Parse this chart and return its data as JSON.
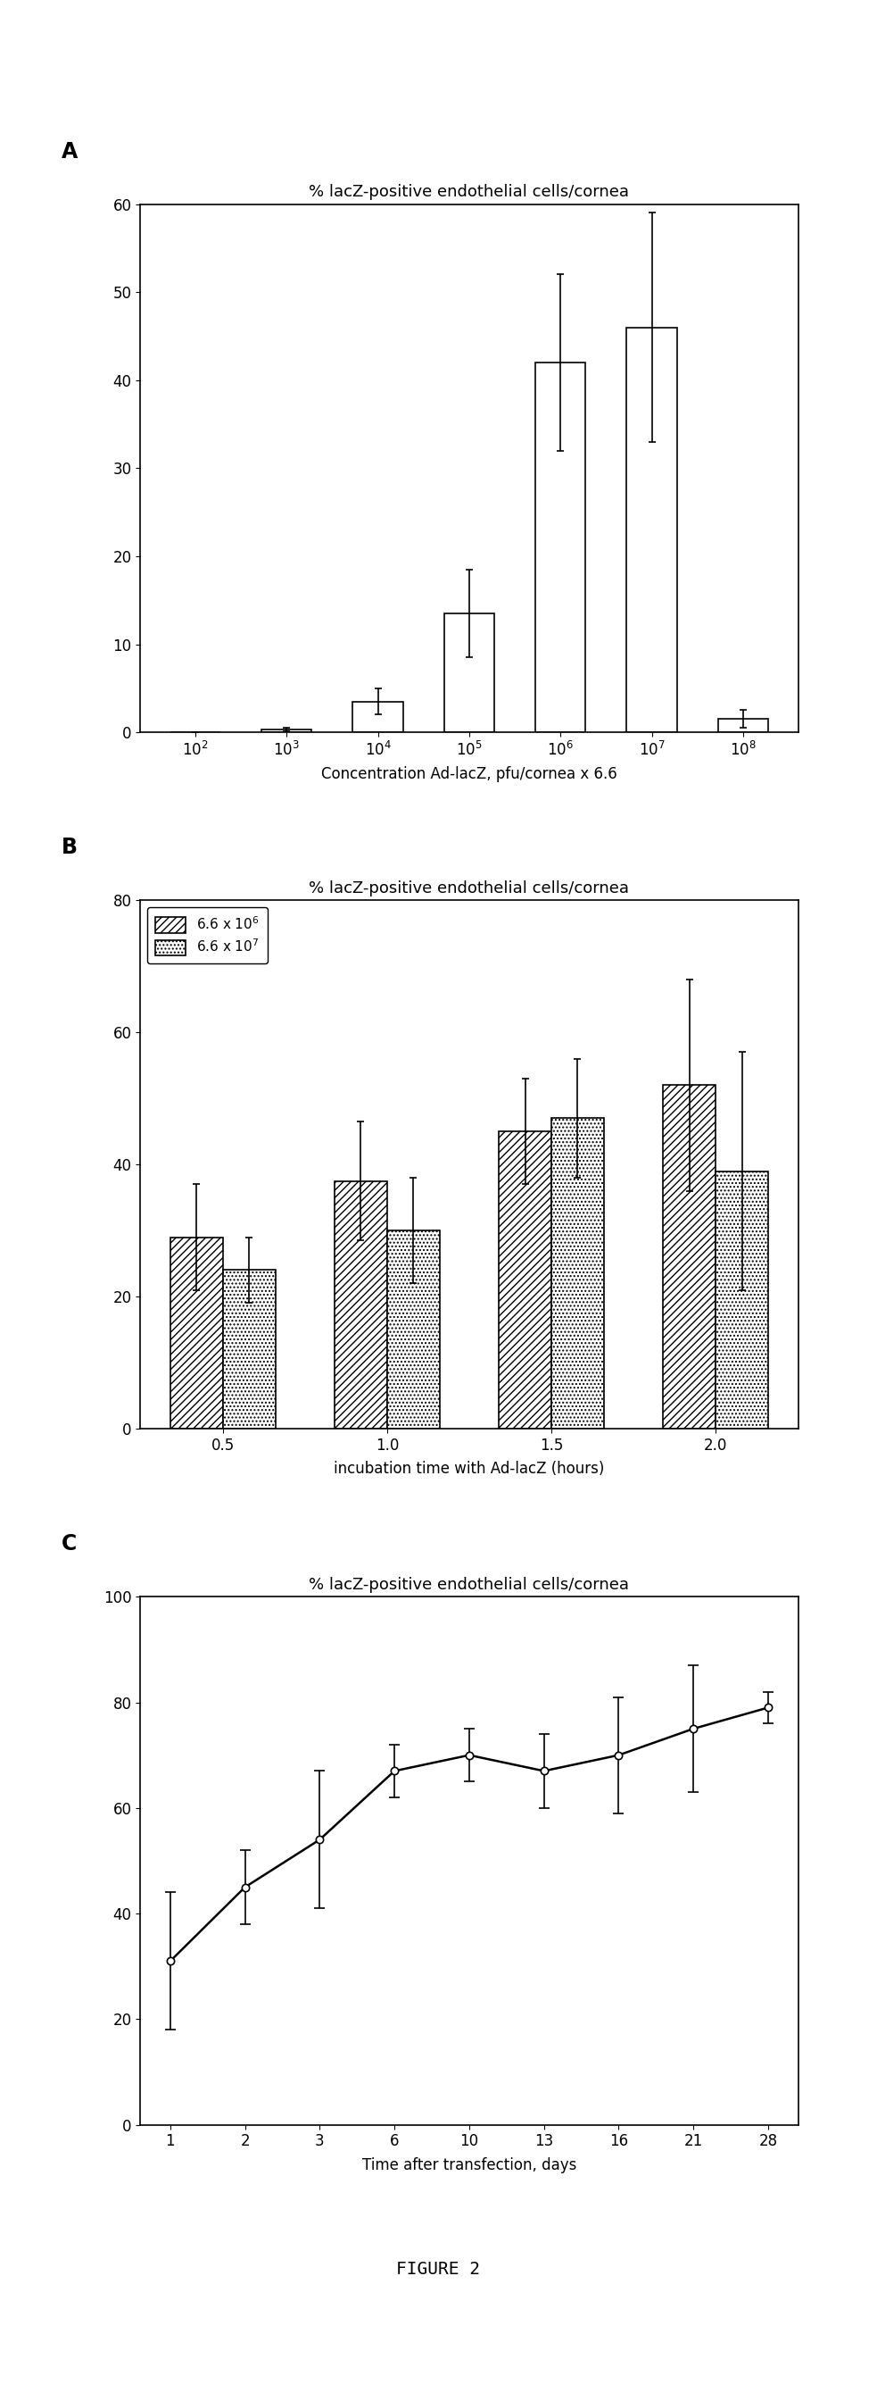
{
  "panel_A": {
    "title": "% lacZ-positive endothelial cells/cornea",
    "xlabel": "Concentration Ad-lacZ, pfu/cornea x 6.6",
    "xlabels": [
      "10$^2$",
      "10$^3$",
      "10$^4$",
      "10$^5$",
      "10$^6$",
      "10$^7$",
      "10$^8$"
    ],
    "values": [
      0.0,
      0.3,
      3.5,
      13.5,
      42.0,
      46.0,
      1.5
    ],
    "errors": [
      0.0,
      0.2,
      1.5,
      5.0,
      10.0,
      13.0,
      1.0
    ],
    "ylim": [
      0,
      60
    ],
    "yticks": [
      0,
      10,
      20,
      30,
      40,
      50,
      60
    ],
    "panel_label": "A"
  },
  "panel_B": {
    "title": "% lacZ-positive endothelial cells/cornea",
    "xlabel": "incubation time with Ad-lacZ (hours)",
    "xlabels": [
      "0.5",
      "1.0",
      "1.5",
      "2.0"
    ],
    "series1_values": [
      29.0,
      37.5,
      45.0,
      52.0
    ],
    "series1_errors": [
      8.0,
      9.0,
      8.0,
      16.0
    ],
    "series2_values": [
      24.0,
      30.0,
      47.0,
      39.0
    ],
    "series2_errors": [
      5.0,
      8.0,
      9.0,
      18.0
    ],
    "legend1": "6.6 x 10$^6$",
    "legend2": "6.6 x 10$^7$",
    "ylim": [
      0,
      80
    ],
    "yticks": [
      0,
      20,
      40,
      60,
      80
    ],
    "panel_label": "B"
  },
  "panel_C": {
    "title": "% lacZ-positive endothelial cells/cornea",
    "xlabel": "Time after transfection, days",
    "xlabels": [
      "1",
      "2",
      "3",
      "6",
      "10",
      "13",
      "16",
      "21",
      "28"
    ],
    "xvalues": [
      0,
      1,
      2,
      3,
      4,
      5,
      6,
      7,
      8
    ],
    "values": [
      31.0,
      45.0,
      54.0,
      67.0,
      70.0,
      67.0,
      70.0,
      75.0,
      79.0
    ],
    "errors": [
      13.0,
      7.0,
      13.0,
      5.0,
      5.0,
      7.0,
      11.0,
      12.0,
      3.0
    ],
    "ylim": [
      0,
      100
    ],
    "yticks": [
      0,
      20,
      40,
      60,
      80,
      100
    ],
    "panel_label": "C"
  },
  "figure_label": "FIGURE 2",
  "bg_color": "#ffffff",
  "bar_color": "#ffffff",
  "bar_edgecolor": "#000000"
}
